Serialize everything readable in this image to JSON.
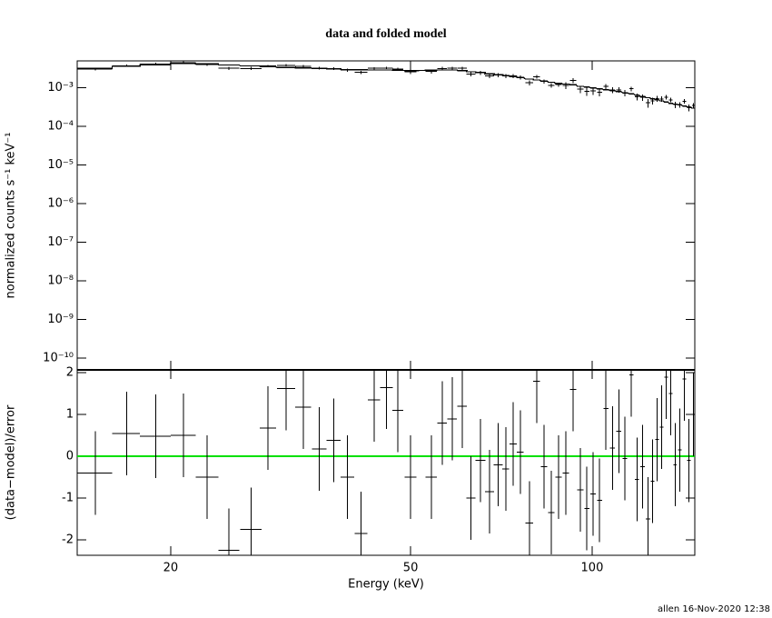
{
  "chart_data": [
    {
      "type": "errorbar",
      "title": "data and folded model",
      "ylabel": "normalized counts s⁻¹ keV⁻¹",
      "xscale": "log",
      "yscale": "log",
      "xlim": [
        14,
        148
      ],
      "ylim": [
        5e-11,
        0.005
      ],
      "yticks": [
        {
          "value": 0.001,
          "label": "10⁻³"
        },
        {
          "value": 0.0001,
          "label": "10⁻⁴"
        },
        {
          "value": 1e-05,
          "label": "10⁻⁵"
        },
        {
          "value": 1e-06,
          "label": "10⁻⁶"
        },
        {
          "value": 1e-07,
          "label": "10⁻⁷"
        },
        {
          "value": 1e-08,
          "label": "10⁻⁸"
        },
        {
          "value": 1e-09,
          "label": "10⁻⁹"
        },
        {
          "value": 1e-10,
          "label": "10⁻¹⁰"
        }
      ],
      "color": "#000000",
      "model_color": "#000000",
      "x": [
        15.0,
        16.9,
        18.9,
        21.0,
        23.0,
        25.0,
        27.2,
        29.0,
        31.1,
        33.2,
        35.3,
        37.3,
        39.3,
        41.4,
        43.5,
        45.6,
        47.6,
        50.0,
        54.1,
        56.4,
        58.6,
        60.9,
        63.0,
        65.3,
        67.6,
        69.9,
        71.9,
        74.0,
        76.0,
        78.7,
        80.9,
        83.2,
        85.6,
        88.0,
        90.5,
        93.0,
        95.6,
        98.0,
        100.4,
        102.9,
        105.4,
        108.1,
        110.7,
        113.4,
        116.2,
        118.7,
        121.2,
        123.8,
        125.9,
        128.1,
        130.4,
        132.7,
        135.0,
        137.3,
        139.8,
        142.2,
        144.7,
        147.3
      ],
      "xerr": [
        1.0,
        0.9,
        1.1,
        1.0,
        1.0,
        1.0,
        1.1,
        0.9,
        1.1,
        1.0,
        1.0,
        1.0,
        1.0,
        1.0,
        1.0,
        1.1,
        1.0,
        1.1,
        1.2,
        1.0,
        1.1,
        1.1,
        1.1,
        1.2,
        1.2,
        1.2,
        0.9,
        1.0,
        1.0,
        1.2,
        1.0,
        1.0,
        1.0,
        1.1,
        1.1,
        1.1,
        1.1,
        0.9,
        1.0,
        1.0,
        1.0,
        1.0,
        1.0,
        1.0,
        1.0,
        0.9,
        1.0,
        1.0,
        0.9,
        0.9,
        0.9,
        0.9,
        0.9,
        0.9,
        0.9,
        0.9,
        0.9,
        0.9
      ],
      "values": [
        0.0031,
        0.00376,
        0.00415,
        0.00447,
        0.00403,
        0.0032,
        0.00318,
        0.00369,
        0.00384,
        0.00361,
        0.00325,
        0.00319,
        0.00288,
        0.00251,
        0.00321,
        0.00328,
        0.0031,
        0.00263,
        0.00268,
        0.00318,
        0.00321,
        0.0032,
        0.00229,
        0.00247,
        0.00207,
        0.00215,
        0.00202,
        0.00202,
        0.00187,
        0.00137,
        0.00195,
        0.00146,
        0.00117,
        0.00122,
        0.00116,
        0.00155,
        0.00094,
        0.00081,
        0.00084,
        0.00077,
        0.00109,
        0.00088,
        0.00089,
        0.00074,
        0.00095,
        0.00059,
        0.00057,
        0.00041,
        0.00046,
        0.00053,
        0.00052,
        0.00058,
        0.00049,
        0.00037,
        0.00037,
        0.00045,
        0.00031,
        0.00035
      ],
      "errors": [
        0.00026,
        0.00029,
        0.00032,
        0.00034,
        0.00034,
        0.00031,
        0.0003,
        0.00028,
        0.00027,
        0.00026,
        0.00026,
        0.00025,
        0.00024,
        0.00024,
        0.00023,
        0.00023,
        0.00023,
        0.00034,
        0.00034,
        0.00035,
        0.00035,
        0.00034,
        0.00031,
        0.0003,
        0.00028,
        0.00026,
        0.00025,
        0.00023,
        0.00022,
        0.0002,
        0.00019,
        0.00018,
        0.00017,
        0.00016,
        0.00023,
        0.00022,
        0.0002,
        0.00019,
        0.00018,
        0.00017,
        0.00016,
        0.00015,
        0.00014,
        0.00014,
        0.00013,
        0.00012,
        0.00011,
        0.0001,
        9e-05,
        9e-05,
        8e-05,
        8e-05,
        7e-05,
        7e-05,
        6e-05,
        6e-05,
        6e-05,
        5e-05
      ],
      "model": [
        0.0032,
        0.0036,
        0.004,
        0.0043,
        0.0042,
        0.0039,
        0.0037,
        0.0035,
        0.0034,
        0.0033,
        0.0032,
        0.0031,
        0.003,
        0.00295,
        0.0029,
        0.0029,
        0.00285,
        0.0028,
        0.00285,
        0.0029,
        0.0029,
        0.0028,
        0.0026,
        0.0025,
        0.0023,
        0.0022,
        0.0021,
        0.00195,
        0.00185,
        0.0017,
        0.0016,
        0.0015,
        0.0014,
        0.0013,
        0.00125,
        0.0012,
        0.0011,
        0.00105,
        0.001,
        0.00095,
        0.0009,
        0.00085,
        0.0008,
        0.00075,
        0.0007,
        0.00065,
        0.0006,
        0.00056,
        0.00052,
        0.00049,
        0.00046,
        0.00043,
        0.0004,
        0.00038,
        0.00036,
        0.00034,
        0.00032,
        0.0003
      ]
    },
    {
      "type": "residual",
      "ylabel": "(data−model)/error",
      "xlabel": "Energy (keV)",
      "xscale": "log",
      "xlim": [
        14,
        148
      ],
      "ylim": [
        -2.37,
        2.07
      ],
      "xticks": [
        20,
        50,
        100
      ],
      "yticks": [
        -2,
        -1,
        0,
        1,
        2
      ],
      "color": "#000000",
      "zero_color": "#00e000",
      "x": [
        15.0,
        16.9,
        18.9,
        21.0,
        23.0,
        25.0,
        27.2,
        29.0,
        31.1,
        33.2,
        35.3,
        37.3,
        39.3,
        41.4,
        43.5,
        45.6,
        47.6,
        50.0,
        54.1,
        56.4,
        58.6,
        60.9,
        63.0,
        65.3,
        67.6,
        69.9,
        71.9,
        74.0,
        76.0,
        78.7,
        80.9,
        83.2,
        85.6,
        88.0,
        90.5,
        93.0,
        95.6,
        98.0,
        100.4,
        102.9,
        105.4,
        108.1,
        110.7,
        113.4,
        116.2,
        118.7,
        121.2,
        123.8,
        125.9,
        128.1,
        130.4,
        132.7,
        135.0,
        137.3,
        139.8,
        142.2,
        144.7,
        147.3
      ],
      "xerr": [
        1.0,
        0.9,
        1.1,
        1.0,
        1.0,
        1.0,
        1.1,
        0.9,
        1.1,
        1.0,
        1.0,
        1.0,
        1.0,
        1.0,
        1.0,
        1.1,
        1.0,
        1.1,
        1.2,
        1.0,
        1.1,
        1.1,
        1.1,
        1.2,
        1.2,
        1.2,
        0.9,
        1.0,
        1.0,
        1.2,
        1.0,
        1.0,
        1.0,
        1.1,
        1.1,
        1.1,
        1.1,
        0.9,
        1.0,
        1.0,
        1.0,
        1.0,
        1.0,
        1.0,
        1.0,
        0.9,
        1.0,
        1.0,
        0.9,
        0.9,
        0.9,
        0.9,
        0.9,
        0.9,
        0.9,
        0.9,
        0.9,
        0.9
      ],
      "values": [
        -0.4,
        0.55,
        0.48,
        0.5,
        -0.5,
        -2.25,
        -1.75,
        0.68,
        1.62,
        1.18,
        0.18,
        0.38,
        -0.5,
        -1.85,
        1.35,
        1.65,
        1.1,
        -0.5,
        -0.5,
        0.8,
        0.9,
        1.2,
        -1.0,
        -0.1,
        -0.85,
        -0.2,
        -0.3,
        0.3,
        0.1,
        -1.6,
        1.8,
        -0.25,
        -1.35,
        -0.5,
        -0.4,
        1.6,
        -0.8,
        -1.25,
        -0.9,
        -1.05,
        1.15,
        0.2,
        0.6,
        -0.05,
        1.95,
        -0.55,
        -0.25,
        -1.5,
        -0.6,
        0.4,
        0.7,
        1.9,
        1.5,
        -0.2,
        0.15,
        1.85,
        -0.1,
        1.0
      ],
      "errors": [
        1,
        1,
        1,
        1,
        1,
        1,
        1,
        1,
        1,
        1,
        1,
        1,
        1,
        1,
        1,
        1,
        1,
        1,
        1,
        1,
        1,
        1,
        1,
        1,
        1,
        1,
        1,
        1,
        1,
        1,
        1,
        1,
        1,
        1,
        1,
        1,
        1,
        1,
        1,
        1,
        1,
        1,
        1,
        1,
        1,
        1,
        1,
        1,
        1,
        1,
        1,
        1,
        1,
        1,
        1,
        1,
        1,
        1
      ]
    }
  ],
  "footer": "allen 16-Nov-2020 12:38"
}
